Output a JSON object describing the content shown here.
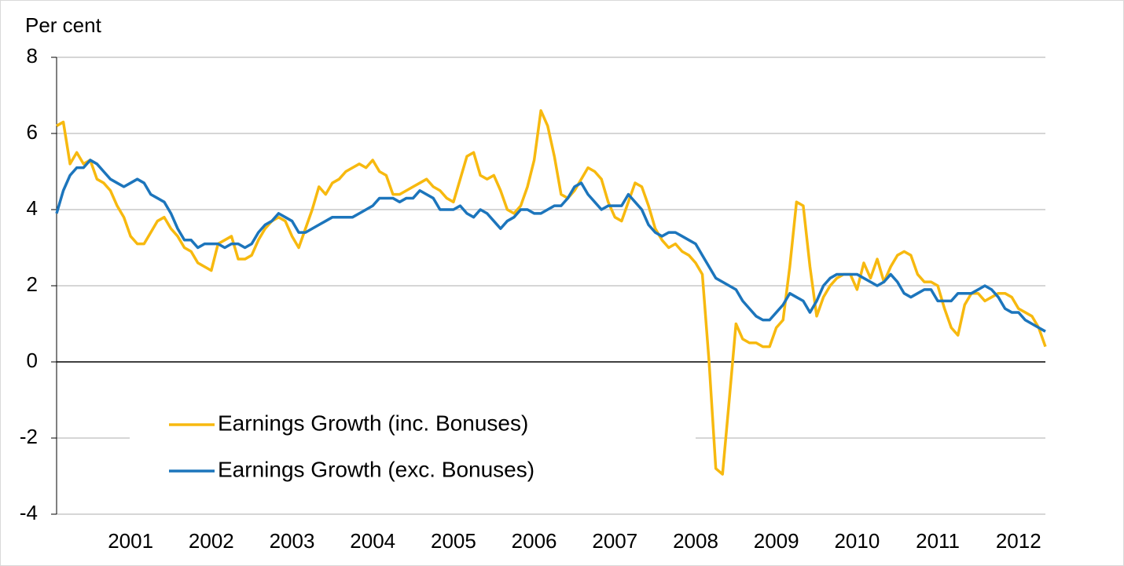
{
  "chart_data": {
    "type": "line",
    "ylabel": "Per cent",
    "categories": [
      null,
      null,
      null,
      null,
      null,
      null,
      null,
      null,
      null,
      null,
      null,
      "2001",
      null,
      null,
      null,
      null,
      null,
      null,
      null,
      null,
      null,
      null,
      null,
      "2002",
      null,
      null,
      null,
      null,
      null,
      null,
      null,
      null,
      null,
      null,
      null,
      "2003",
      null,
      null,
      null,
      null,
      null,
      null,
      null,
      null,
      null,
      null,
      null,
      "2004",
      null,
      null,
      null,
      null,
      null,
      null,
      null,
      null,
      null,
      null,
      null,
      "2005",
      null,
      null,
      null,
      null,
      null,
      null,
      null,
      null,
      null,
      null,
      null,
      "2006",
      null,
      null,
      null,
      null,
      null,
      null,
      null,
      null,
      null,
      null,
      null,
      "2007",
      null,
      null,
      null,
      null,
      null,
      null,
      null,
      null,
      null,
      null,
      null,
      "2008",
      null,
      null,
      null,
      null,
      null,
      null,
      null,
      null,
      null,
      null,
      null,
      "2009",
      null,
      null,
      null,
      null,
      null,
      null,
      null,
      null,
      null,
      null,
      null,
      "2010",
      null,
      null,
      null,
      null,
      null,
      null,
      null,
      null,
      null,
      null,
      null,
      "2011",
      null,
      null,
      null,
      null,
      null,
      null,
      null,
      null,
      null,
      null,
      null,
      "2012",
      null,
      null,
      null,
      null
    ],
    "series": [
      {
        "name": "Earnings Growth (inc. Bonuses)",
        "color": "#f7b90f",
        "values": [
          6.2,
          6.3,
          5.2,
          5.5,
          5.2,
          5.3,
          4.8,
          4.7,
          4.5,
          4.1,
          3.8,
          3.3,
          3.1,
          3.1,
          3.4,
          3.7,
          3.8,
          3.5,
          3.3,
          3.0,
          2.9,
          2.6,
          2.5,
          2.4,
          3.1,
          3.2,
          3.3,
          2.7,
          2.7,
          2.8,
          3.2,
          3.5,
          3.7,
          3.8,
          3.7,
          3.3,
          3.0,
          3.5,
          4.0,
          4.6,
          4.4,
          4.7,
          4.8,
          5.0,
          5.1,
          5.2,
          5.1,
          5.3,
          5.0,
          4.9,
          4.4,
          4.4,
          4.5,
          4.6,
          4.7,
          4.8,
          4.6,
          4.5,
          4.3,
          4.2,
          4.8,
          5.4,
          5.5,
          4.9,
          4.8,
          4.9,
          4.5,
          4.0,
          3.9,
          4.1,
          4.6,
          5.3,
          6.6,
          6.2,
          5.4,
          4.4,
          4.3,
          4.5,
          4.8,
          5.1,
          5.0,
          4.8,
          4.2,
          3.8,
          3.7,
          4.2,
          4.7,
          4.6,
          4.1,
          3.5,
          3.2,
          3.0,
          3.1,
          2.9,
          2.8,
          2.6,
          2.3,
          0,
          -2.8,
          -2.95,
          -1.0,
          1.0,
          0.6,
          0.5,
          0.5,
          0.4,
          0.4,
          0.9,
          1.1,
          2.5,
          4.2,
          4.1,
          2.5,
          1.2,
          1.7,
          2.0,
          2.2,
          2.3,
          2.3,
          1.9,
          2.6,
          2.2,
          2.7,
          2.1,
          2.5,
          2.8,
          2.9,
          2.8,
          2.3,
          2.1,
          2.1,
          2.0,
          1.4,
          0.9,
          0.7,
          1.5,
          1.8,
          1.8,
          1.6,
          1.7,
          1.8,
          1.8,
          1.7,
          1.4,
          1.3,
          1.2,
          0.9,
          0.4
        ]
      },
      {
        "name": "Earnings Growth (exc. Bonuses)",
        "color": "#1c75bc",
        "values": [
          3.9,
          4.5,
          4.9,
          5.1,
          5.1,
          5.3,
          5.2,
          5.0,
          4.8,
          4.7,
          4.6,
          4.7,
          4.8,
          4.7,
          4.4,
          4.3,
          4.2,
          3.9,
          3.5,
          3.2,
          3.2,
          3.0,
          3.1,
          3.1,
          3.1,
          3.0,
          3.1,
          3.1,
          3.0,
          3.1,
          3.4,
          3.6,
          3.7,
          3.9,
          3.8,
          3.7,
          3.4,
          3.4,
          3.5,
          3.6,
          3.7,
          3.8,
          3.8,
          3.8,
          3.8,
          3.9,
          4.0,
          4.1,
          4.3,
          4.3,
          4.3,
          4.2,
          4.3,
          4.3,
          4.5,
          4.4,
          4.3,
          4.0,
          4.0,
          4.0,
          4.1,
          3.9,
          3.8,
          4.0,
          3.9,
          3.7,
          3.5,
          3.7,
          3.8,
          4.0,
          4.0,
          3.9,
          3.9,
          4.0,
          4.1,
          4.1,
          4.3,
          4.6,
          4.7,
          4.4,
          4.2,
          4.0,
          4.1,
          4.1,
          4.1,
          4.4,
          4.2,
          4.0,
          3.6,
          3.4,
          3.3,
          3.4,
          3.4,
          3.3,
          3.2,
          3.1,
          2.8,
          2.5,
          2.2,
          2.1,
          2.0,
          1.9,
          1.6,
          1.4,
          1.2,
          1.1,
          1.1,
          1.3,
          1.5,
          1.8,
          1.7,
          1.6,
          1.3,
          1.6,
          2.0,
          2.2,
          2.3,
          2.3,
          2.3,
          2.3,
          2.2,
          2.1,
          2.0,
          2.1,
          2.3,
          2.1,
          1.8,
          1.7,
          1.8,
          1.9,
          1.9,
          1.6,
          1.6,
          1.6,
          1.8,
          1.8,
          1.8,
          1.9,
          2.0,
          1.9,
          1.7,
          1.4,
          1.3,
          1.3,
          1.1,
          1.0,
          0.9,
          0.8
        ]
      }
    ],
    "ylim": [
      -4,
      8
    ],
    "yticks": [
      -4,
      -2,
      0,
      2,
      4,
      6,
      8
    ],
    "grid": true,
    "legend": "lower left"
  }
}
